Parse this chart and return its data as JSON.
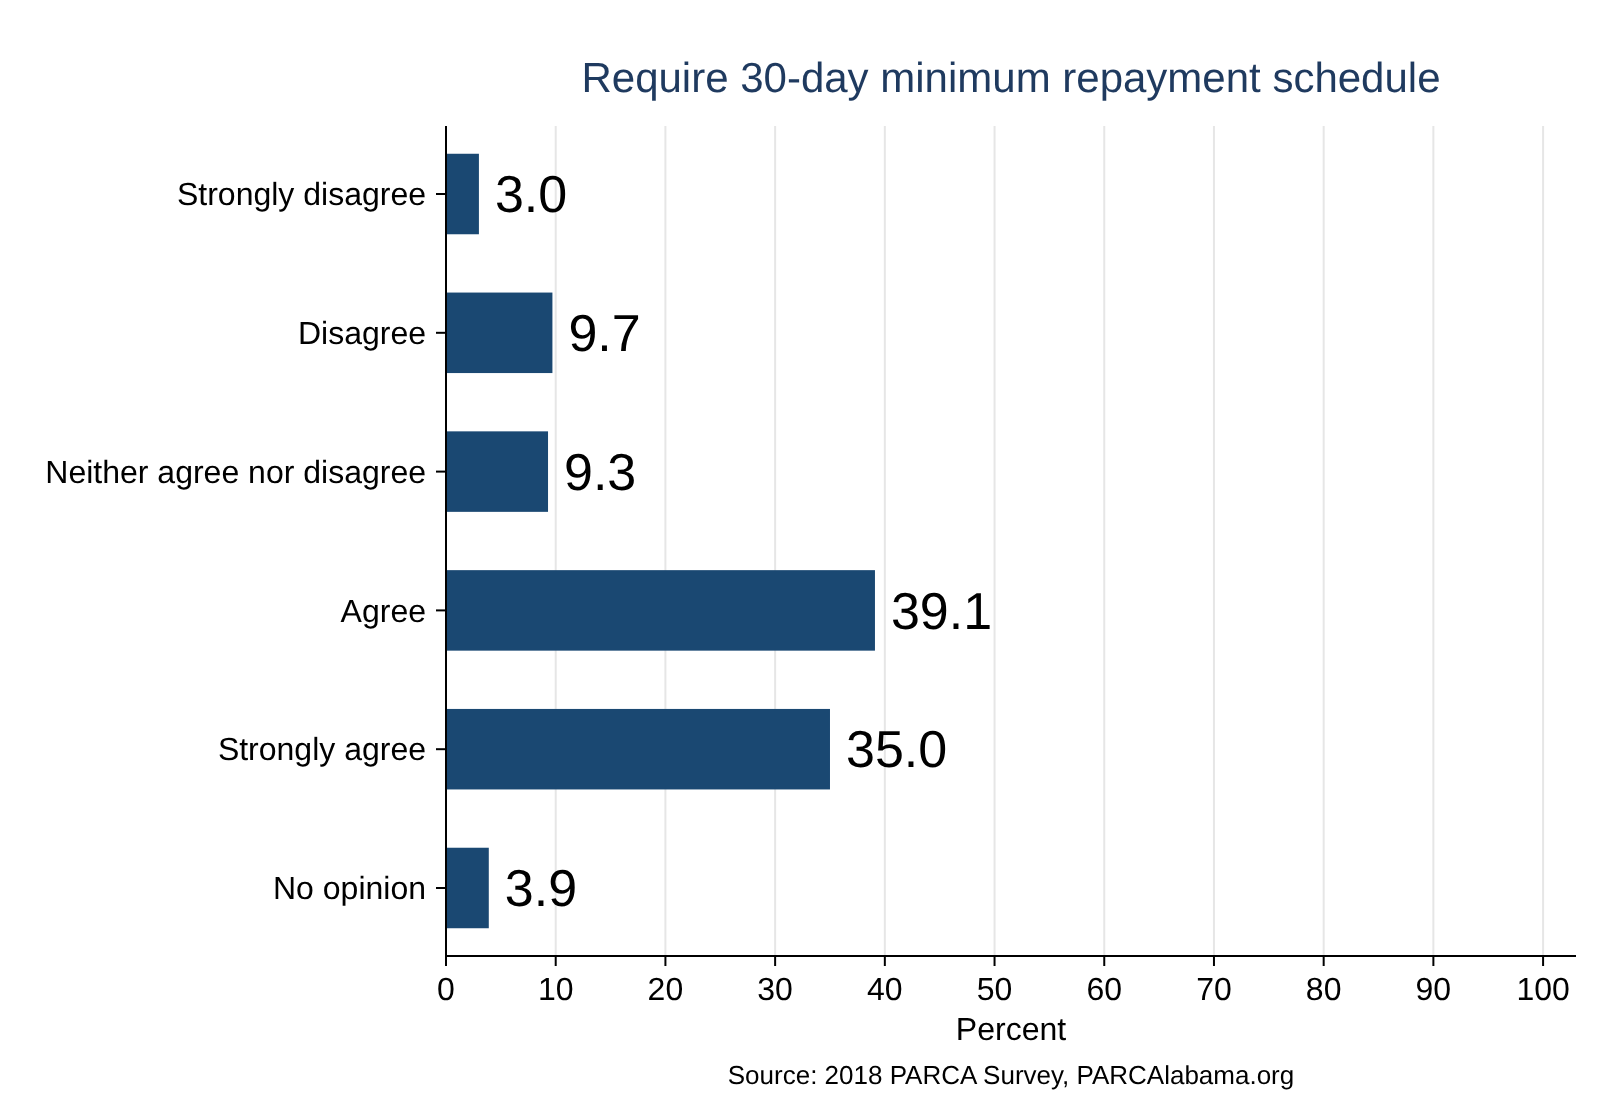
{
  "chart_data": {
    "type": "bar",
    "orientation": "horizontal",
    "title": "Require 30-day minimum repayment schedule",
    "xlabel": "Percent",
    "categories": [
      "Strongly disagree",
      "Disagree",
      "Neither agree nor disagree",
      "Agree",
      "Strongly agree",
      "No opinion"
    ],
    "values": [
      3.0,
      9.7,
      9.3,
      39.1,
      35.0,
      3.9
    ],
    "value_labels": [
      "3.0",
      "9.7",
      "9.3",
      "39.1",
      "35.0",
      "3.9"
    ],
    "color": "#1a4872",
    "xlim": [
      0,
      103
    ],
    "xticks": [
      0,
      10,
      20,
      30,
      40,
      50,
      60,
      70,
      80,
      90,
      100
    ],
    "grid": "x",
    "annotations": [
      "Source: 2018 PARCA Survey, PARCAlabama.org"
    ]
  }
}
